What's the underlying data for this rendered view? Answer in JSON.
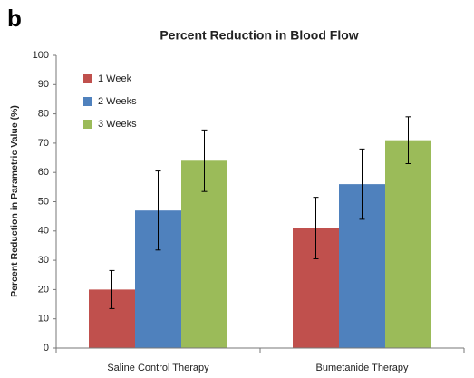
{
  "panel_label": "b",
  "chart_data": {
    "type": "bar",
    "title": "Percent Reduction in Blood Flow",
    "y_label": "Percent Reduction in Parametric Value (%)",
    "categories": [
      "Saline Control Therapy",
      "Bumetanide Therapy"
    ],
    "series": [
      {
        "name": "1 Week",
        "color": "#c0504d",
        "values": [
          20,
          41
        ],
        "errors": [
          6.5,
          10.5
        ]
      },
      {
        "name": "2 Weeks",
        "color": "#4f81bd",
        "values": [
          47,
          56
        ],
        "errors": [
          13.5,
          12
        ]
      },
      {
        "name": "3 Weeks",
        "color": "#9bbb59",
        "values": [
          64,
          71
        ],
        "errors": [
          10.5,
          8
        ]
      }
    ],
    "ylim": [
      0,
      100
    ],
    "yticks": [
      0,
      10,
      20,
      30,
      40,
      50,
      60,
      70,
      80,
      90,
      100
    ],
    "grid": false,
    "legend": "top-left"
  }
}
